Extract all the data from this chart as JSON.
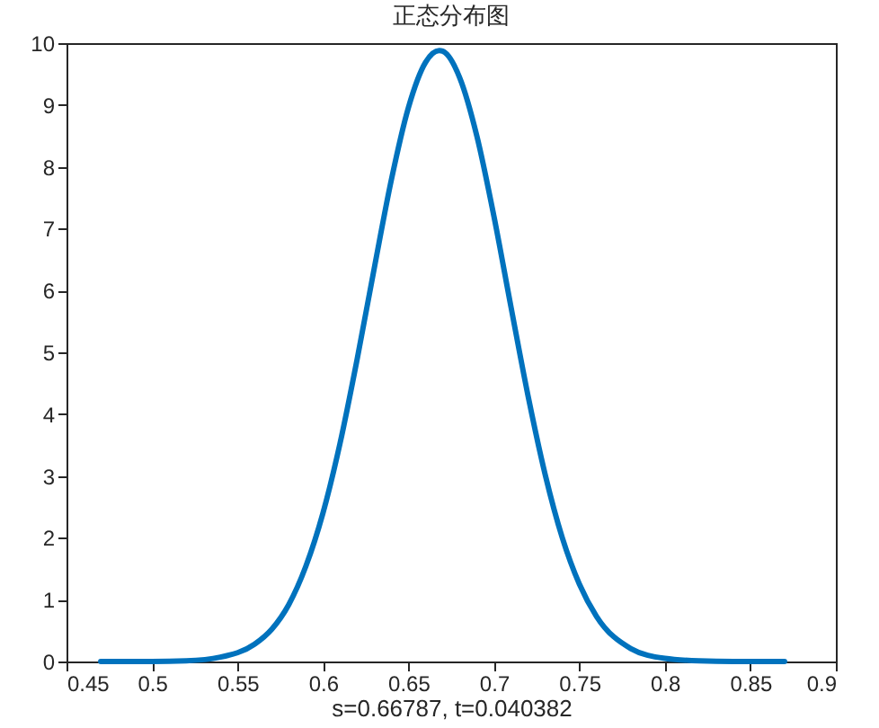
{
  "chart_data": {
    "type": "line",
    "title": "正态分布图",
    "xlabel": "s=0.66787, t=0.040382",
    "x": [
      0.47,
      0.5,
      0.52,
      0.54,
      0.56,
      0.57,
      0.58,
      0.59,
      0.6,
      0.61,
      0.62,
      0.63,
      0.64,
      0.65,
      0.66,
      0.668,
      0.67,
      0.68,
      0.69,
      0.7,
      0.71,
      0.72,
      0.73,
      0.74,
      0.75,
      0.76,
      0.78,
      0.8,
      0.82,
      0.84,
      0.87
    ],
    "series": [
      {
        "color": "#0072bd",
        "values": [
          0,
          0,
          0.01,
          0.07,
          0.28,
          0.52,
          0.92,
          1.54,
          2.4,
          3.53,
          4.89,
          6.36,
          7.79,
          8.96,
          9.69,
          9.88,
          9.87,
          9.44,
          8.5,
          7.2,
          5.73,
          4.29,
          3.02,
          2.0,
          1.25,
          0.73,
          0.21,
          0.05,
          0.01,
          0,
          0
        ]
      }
    ],
    "xlim": [
      0.45,
      0.9
    ],
    "xticks": [
      0.45,
      0.5,
      0.55,
      0.6,
      0.65,
      0.7,
      0.75,
      0.8,
      0.85,
      0.9
    ],
    "ylim": [
      0,
      10
    ],
    "yticks": [
      0,
      1,
      2,
      3,
      4,
      5,
      6,
      7,
      8,
      9,
      10
    ],
    "grid": false,
    "marker": "none",
    "line_style": "solid"
  }
}
